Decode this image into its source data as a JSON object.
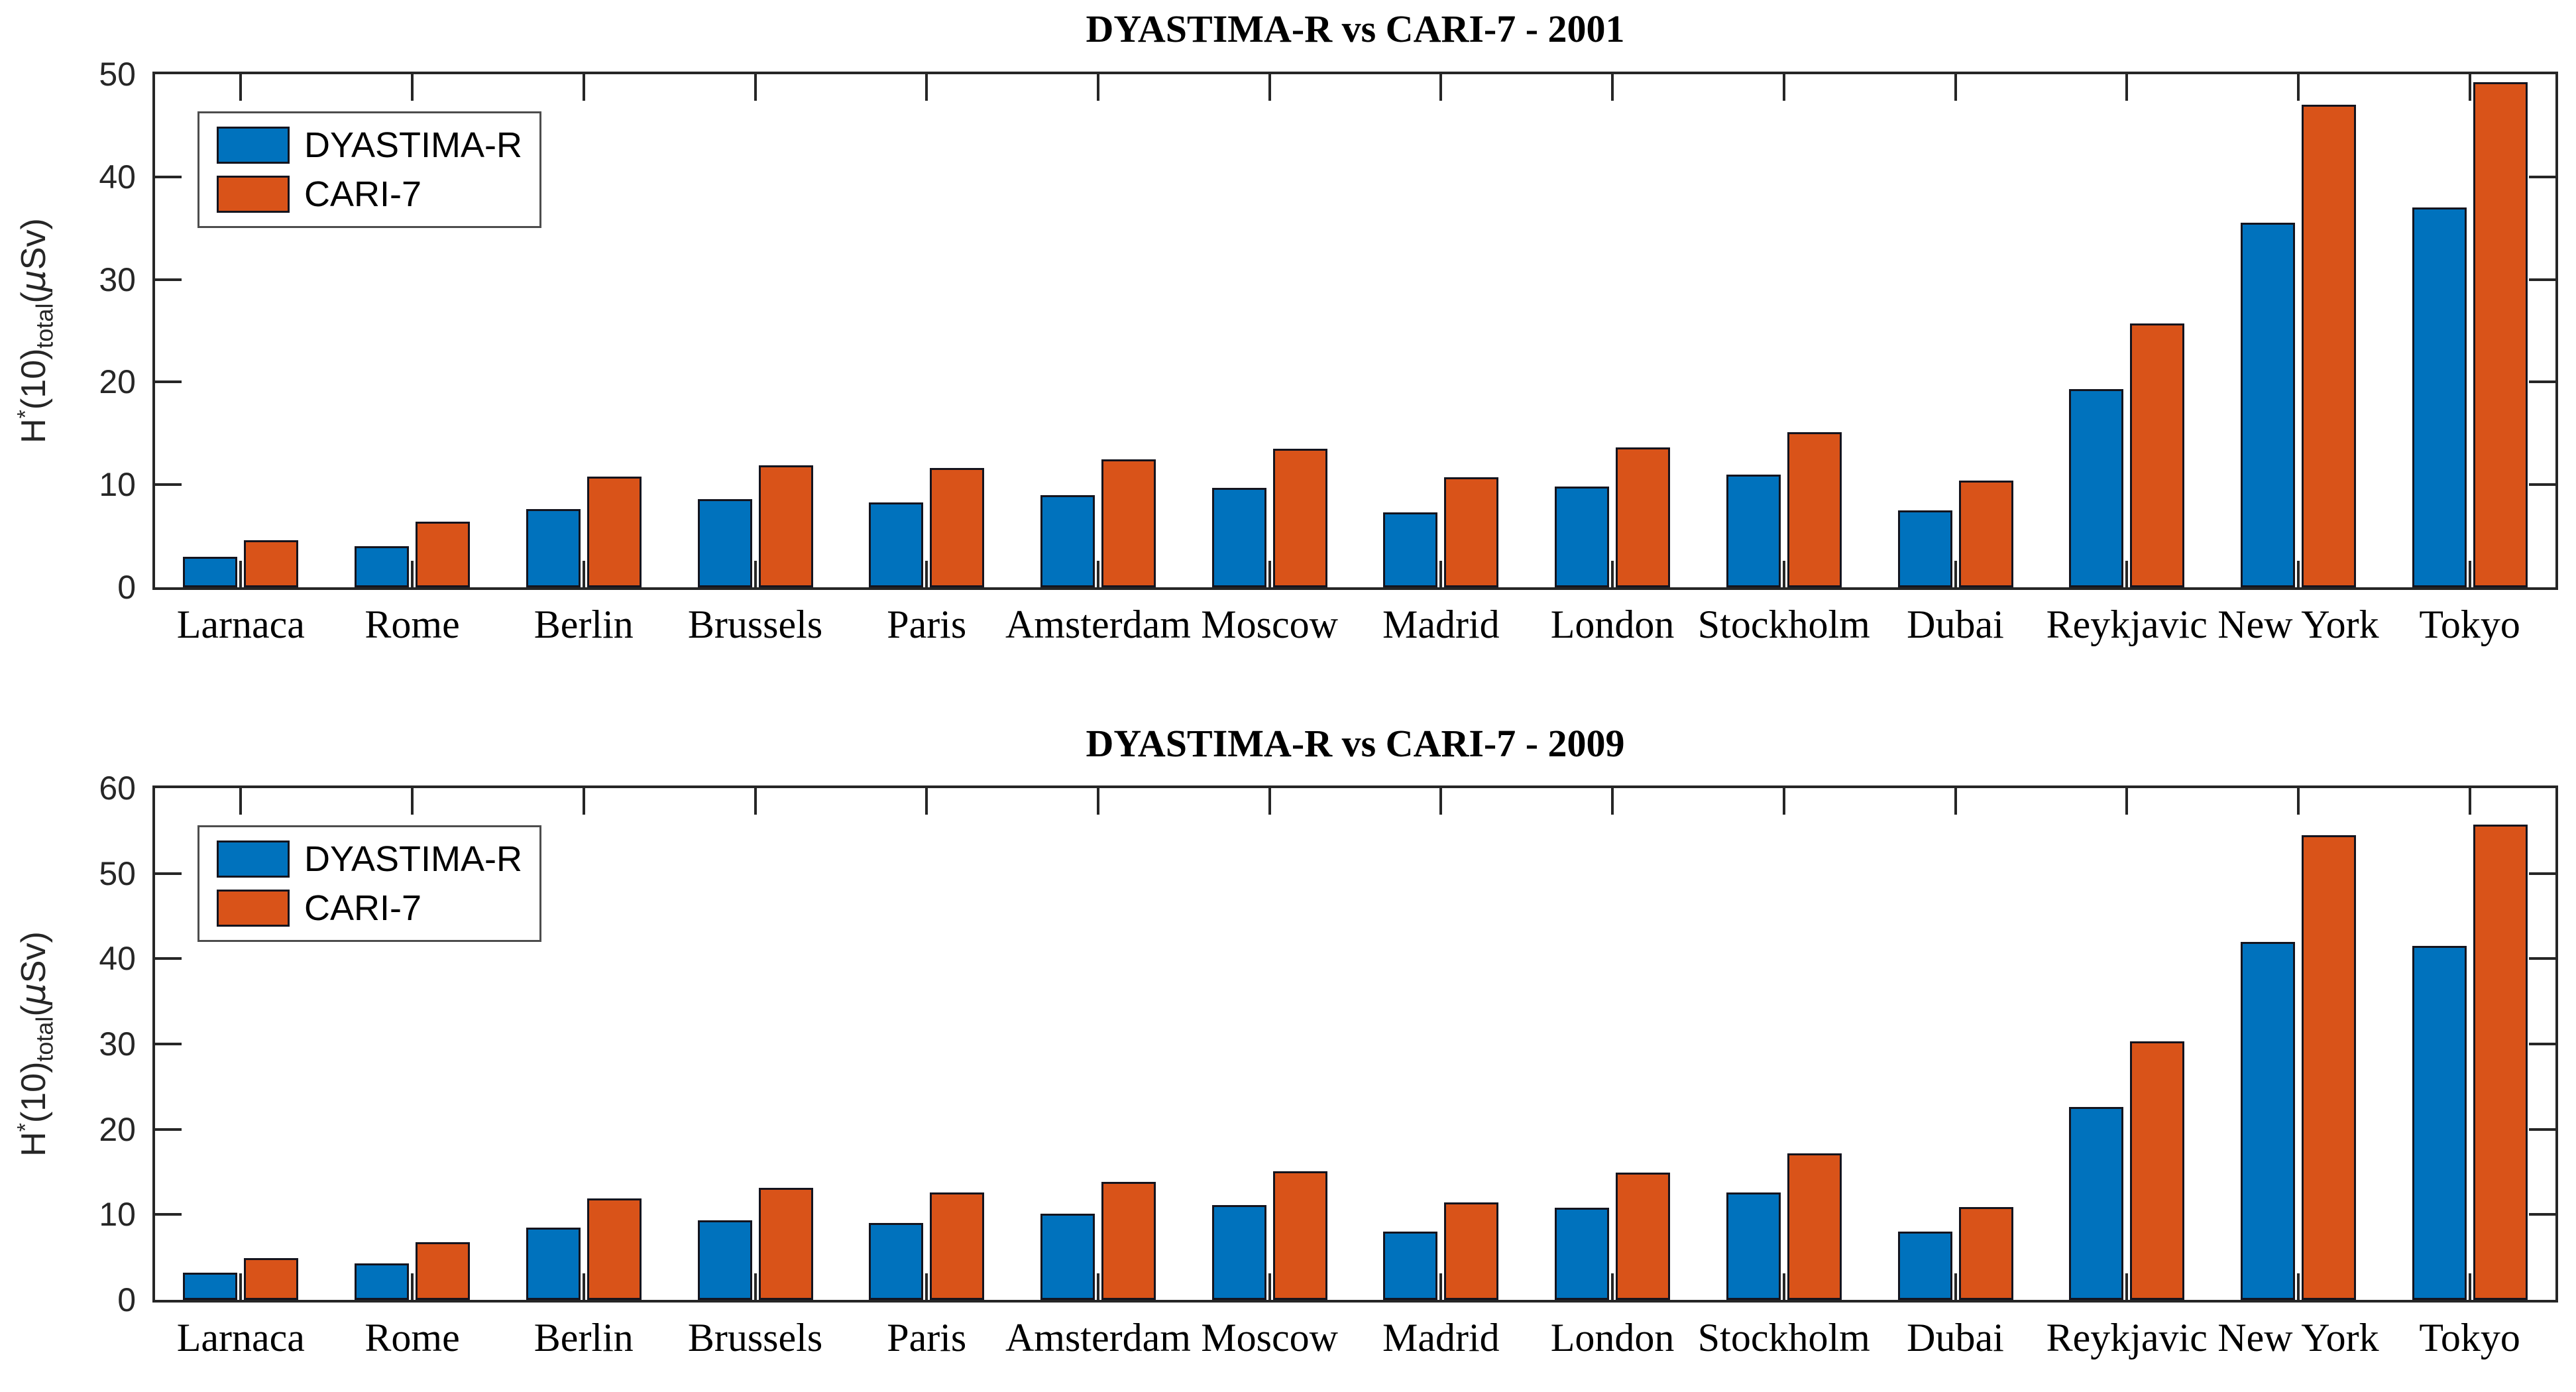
{
  "colors": {
    "dyastima_blue": "#0072BD",
    "cari_orange": "#D95319",
    "axis": "#262626",
    "bar_edge": "#14141e",
    "legend_border": "#4d4d4d",
    "background": "#ffffff"
  },
  "ylabel": {
    "h": "H",
    "star": "*",
    "ten": "(10)",
    "total": "total",
    "open": "(",
    "mu": "μ",
    "close": "Sv)"
  },
  "legend": {
    "items": [
      {
        "label": "DYASTIMA-R",
        "color_key": "dyastima_blue"
      },
      {
        "label": "CARI-7",
        "color_key": "cari_orange"
      }
    ]
  },
  "chart_data": [
    {
      "type": "bar",
      "title": "DYASTIMA-R vs CARI-7 - 2001",
      "xlabel": "",
      "ylabel": "H*(10)total (μSv)",
      "ylim": [
        0,
        50
      ],
      "yticks": [
        0,
        10,
        20,
        30,
        40,
        50
      ],
      "grid": false,
      "legend_position": "top-left",
      "categories": [
        "Larnaca",
        "Rome",
        "Berlin",
        "Brussels",
        "Paris",
        "Amsterdam",
        "Moscow",
        "Madrid",
        "London",
        "Stockholm",
        "Dubai",
        "Reykjavic",
        "New York",
        "Tokyo"
      ],
      "series": [
        {
          "name": "DYASTIMA-R",
          "color": "#0072BD",
          "values": [
            3.0,
            4.0,
            7.6,
            8.6,
            8.3,
            9.0,
            9.7,
            7.3,
            9.8,
            11.0,
            7.5,
            19.3,
            35.5,
            37.0
          ]
        },
        {
          "name": "CARI-7",
          "color": "#D95319",
          "values": [
            4.6,
            6.4,
            10.8,
            11.9,
            11.6,
            12.5,
            13.5,
            10.7,
            13.6,
            15.1,
            10.4,
            25.7,
            47.0,
            49.2
          ]
        }
      ]
    },
    {
      "type": "bar",
      "title": "DYASTIMA-R vs CARI-7 - 2009",
      "xlabel": "",
      "ylabel": "H*(10)total (μSv)",
      "ylim": [
        0,
        60
      ],
      "yticks": [
        0,
        10,
        20,
        30,
        40,
        50,
        60
      ],
      "grid": false,
      "legend_position": "top-left",
      "categories": [
        "Larnaca",
        "Rome",
        "Berlin",
        "Brussels",
        "Paris",
        "Amsterdam",
        "Moscow",
        "Madrid",
        "London",
        "Stockholm",
        "Dubai",
        "Reykjavic",
        "New York",
        "Tokyo"
      ],
      "series": [
        {
          "name": "DYASTIMA-R",
          "color": "#0072BD",
          "values": [
            3.2,
            4.3,
            8.5,
            9.3,
            9.0,
            10.1,
            11.1,
            8.0,
            10.8,
            12.6,
            8.0,
            22.6,
            42.0,
            41.5
          ]
        },
        {
          "name": "CARI-7",
          "color": "#D95319",
          "values": [
            4.9,
            6.8,
            11.9,
            13.1,
            12.6,
            13.8,
            15.1,
            11.4,
            14.9,
            17.2,
            10.9,
            30.3,
            54.5,
            55.7
          ]
        }
      ]
    }
  ]
}
